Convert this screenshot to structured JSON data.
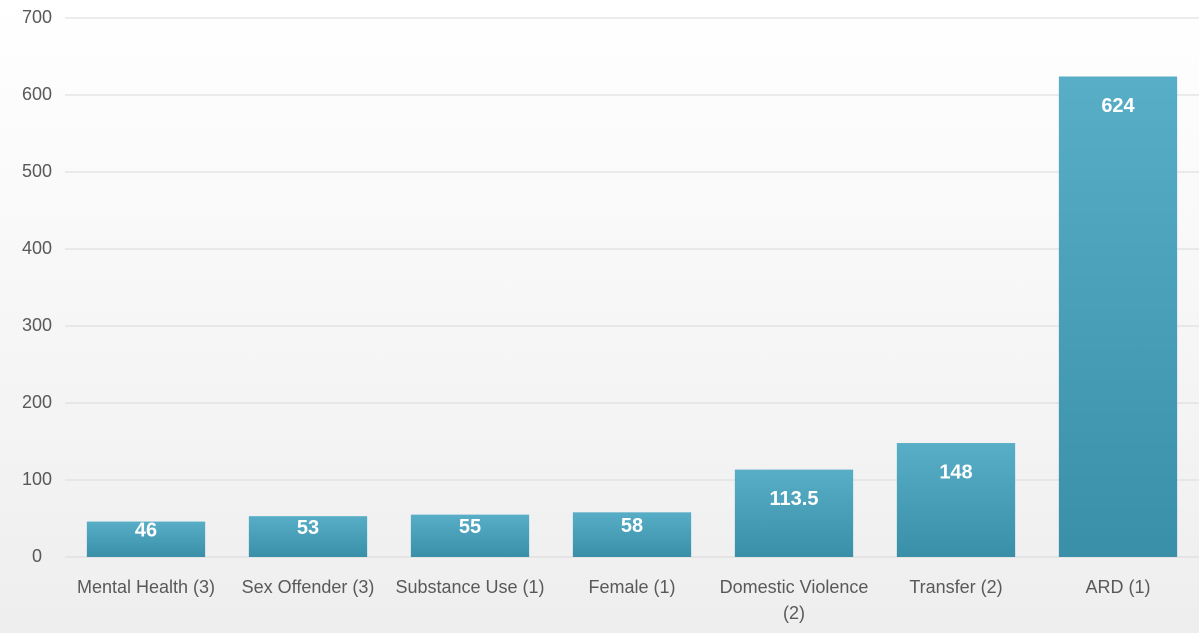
{
  "chart_data": {
    "type": "bar",
    "categories": [
      "Mental Health (3)",
      "Sex Offender (3)",
      "Substance Use (1)",
      "Female (1)",
      "Domestic Violence (2)",
      "Transfer (2)",
      "ARD (1)"
    ],
    "values": [
      46,
      53,
      55,
      58,
      113.5,
      148,
      624
    ],
    "color": "#41a3bf",
    "ylim": [
      0,
      700
    ],
    "yticks": [
      0,
      100,
      200,
      300,
      400,
      500,
      600,
      700
    ],
    "grid": true
  }
}
